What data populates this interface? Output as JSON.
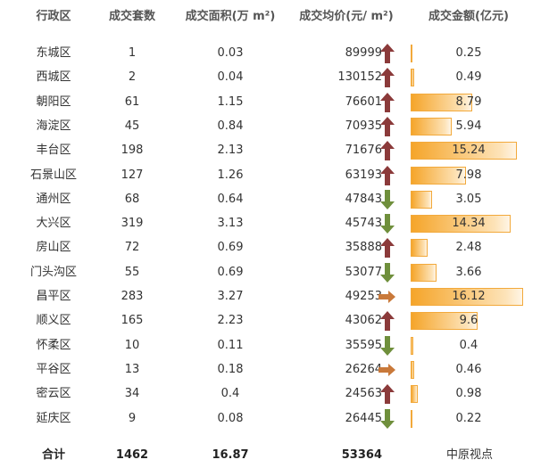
{
  "header": [
    "行政区",
    "成交套数",
    "成交面积(万 m²)",
    "成交均价(元/ m²)",
    "成交金额(亿元)"
  ],
  "rows": [
    {
      "district": "东城区",
      "count": 1,
      "area": 0.03,
      "price": 89999,
      "trend": "up",
      "amount": 0.25
    },
    {
      "district": "西城区",
      "count": 2,
      "area": 0.04,
      "price": 130152,
      "trend": "up",
      "amount": 0.49
    },
    {
      "district": "朝阳区",
      "count": 61,
      "area": 1.15,
      "price": 76601,
      "trend": "up",
      "amount": 8.79
    },
    {
      "district": "海淀区",
      "count": 45,
      "area": 0.84,
      "price": 70935,
      "trend": "up",
      "amount": 5.94
    },
    {
      "district": "丰台区",
      "count": 198,
      "area": 2.13,
      "price": 71676,
      "trend": "up",
      "amount": 15.24
    },
    {
      "district": "石景山区",
      "count": 127,
      "area": 1.26,
      "price": 63193,
      "trend": "up",
      "amount": 7.98
    },
    {
      "district": "通州区",
      "count": 68,
      "area": 0.64,
      "price": 47843,
      "trend": "down",
      "amount": 3.05
    },
    {
      "district": "大兴区",
      "count": 319,
      "area": 3.13,
      "price": 45743,
      "trend": "down",
      "amount": 14.34
    },
    {
      "district": "房山区",
      "count": 72,
      "area": 0.69,
      "price": 35888,
      "trend": "up",
      "amount": 2.48
    },
    {
      "district": "门头沟区",
      "count": 55,
      "area": 0.69,
      "price": 53077,
      "trend": "down",
      "amount": 3.66
    },
    {
      "district": "昌平区",
      "count": 283,
      "area": 3.27,
      "price": 49253,
      "trend": "flat",
      "amount": 16.12
    },
    {
      "district": "顺义区",
      "count": 165,
      "area": 2.23,
      "price": 43062,
      "trend": "up",
      "amount": 9.6
    },
    {
      "district": "怀柔区",
      "count": 10,
      "area": 0.11,
      "price": 35595,
      "trend": "down",
      "amount": 0.4
    },
    {
      "district": "平谷区",
      "count": 13,
      "area": 0.18,
      "price": 26264,
      "trend": "flat",
      "amount": 0.46
    },
    {
      "district": "密云区",
      "count": 34,
      "area": 0.4,
      "price": 24563,
      "trend": "up",
      "amount": 0.98
    },
    {
      "district": "延庆区",
      "count": 9,
      "area": 0.08,
      "price": 26445,
      "trend": "down",
      "amount": 0.22
    }
  ],
  "total": {
    "label": "合计",
    "count": 1462,
    "area": 16.87,
    "price": 53364
  },
  "watermark": "中原视点"
}
